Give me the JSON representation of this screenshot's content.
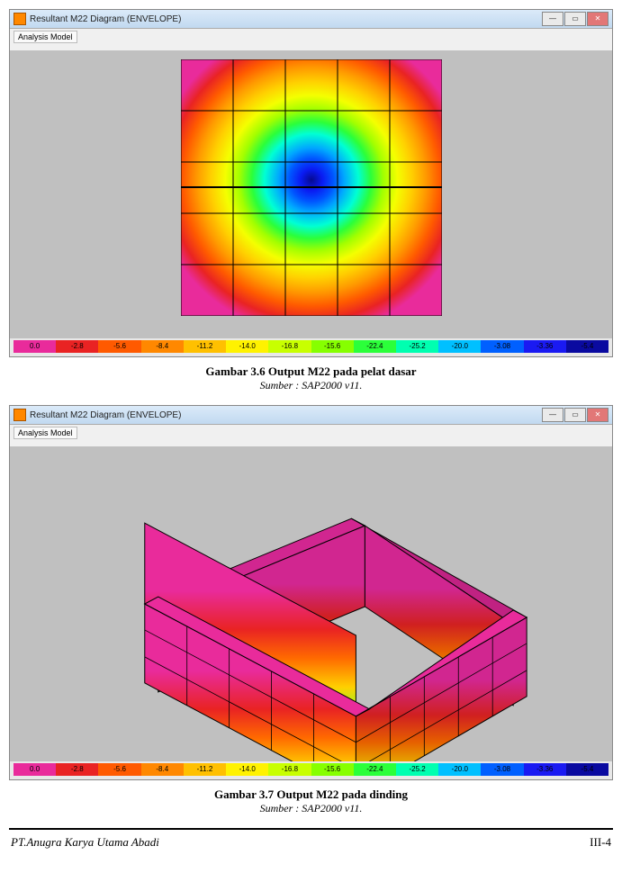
{
  "figure1": {
    "window_title": "Resultant M22 Diagram   (ENVELOPE)",
    "toolbar_label": "Analysis Model",
    "caption": "Gambar 3.6 Output M22 pada pelat dasar",
    "source": "Sumber : SAP2000 v11.",
    "contour": {
      "type": "heatmap",
      "grid_rows": 5,
      "grid_cols": 5,
      "background_color": "#c0c0c0",
      "gridline_color": "#000000",
      "concentric_bands_colors": [
        "#e92b9b",
        "#e92323",
        "#ff5a00",
        "#ff9a00",
        "#ffd000",
        "#f4ff00",
        "#a1ff00",
        "#2bff3a",
        "#00ffd4",
        "#00a7ff",
        "#0055ff",
        "#0a1bf2",
        "#060a8f"
      ]
    }
  },
  "figure2": {
    "window_title": "Resultant M22 Diagram   (ENVELOPE)",
    "toolbar_label": "Analysis Model",
    "caption": "Gambar 3.7 Output M22 pada dinding",
    "source": "Sumber : SAP2000 v11.",
    "walls": {
      "type": "3d-box-walls",
      "vertical_gradient_colors": [
        "#e92b9b",
        "#e92b9b",
        "#e92323",
        "#ff5a00",
        "#ff9a00",
        "#ffd000",
        "#a1ff00",
        "#2bff3a"
      ],
      "floor_arrow_color": "#5ad9ff"
    }
  },
  "legend": {
    "values": [
      "0.0",
      "-2.8",
      "-5.6",
      "-8.4",
      "-11.2",
      "-14.0",
      "-16.8",
      "-15.6",
      "-22.4",
      "-25.2",
      "-20.0",
      "-3.08",
      "-3.36",
      "-5.4"
    ],
    "colors": [
      "#e92b9b",
      "#e92323",
      "#ff5a00",
      "#ff8800",
      "#ffc000",
      "#fff200",
      "#c8ff00",
      "#86ff00",
      "#2bff3a",
      "#00ffb0",
      "#00c0ff",
      "#0060ff",
      "#1a1af2",
      "#0a0aa0"
    ]
  },
  "win_buttons": {
    "min": "—",
    "max": "▭",
    "close": "✕"
  },
  "footer": {
    "company": "PT.Anugra Karya Utama Abadi",
    "page": "III-4"
  }
}
